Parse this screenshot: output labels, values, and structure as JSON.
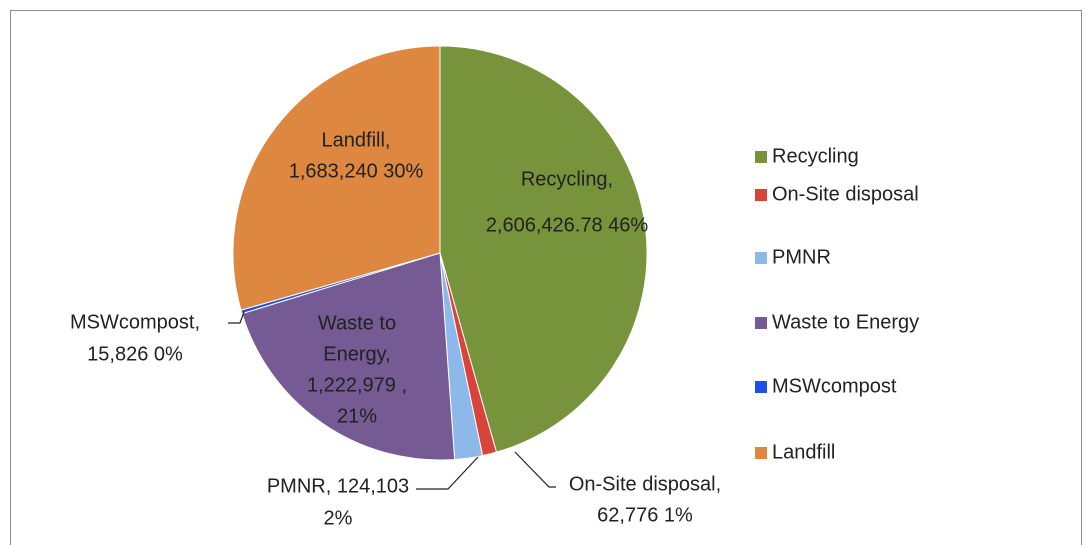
{
  "chart_data": {
    "type": "pie",
    "categories": [
      "Recycling",
      "On-Site disposal",
      "PMNR",
      "Waste to Energy",
      "MSWcompost",
      "Landfill"
    ],
    "values": [
      2606426.78,
      62776,
      124103,
      1222979,
      15826,
      1683240
    ],
    "colors": [
      "#77933c",
      "#d9443a",
      "#8db8ea",
      "#755a93",
      "#1f4ee8",
      "#dd8741"
    ],
    "data_labels": [
      [
        "Recycling,",
        "2,606,426.78  46%"
      ],
      [
        "On-Site disposal,",
        "62,776  1%"
      ],
      [
        "PMNR, 124,103",
        "2%"
      ],
      [
        "Waste to",
        "Energy,",
        "1,222,979 ,",
        "21%"
      ],
      [
        "MSWcompost,",
        "15,826  0%"
      ],
      [
        "Landfill,",
        "1,683,240  30%"
      ]
    ],
    "legend": "right"
  }
}
